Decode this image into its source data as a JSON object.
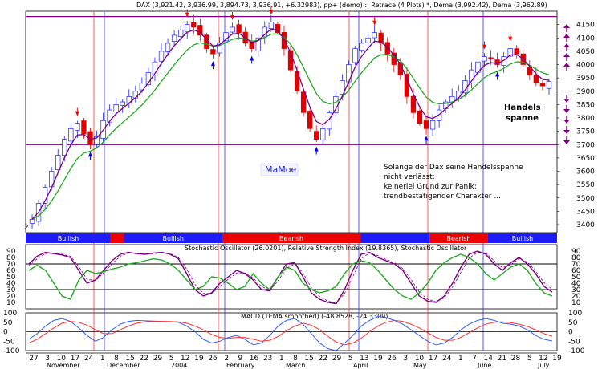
{
  "colors": {
    "up_candle": "#2020ff",
    "down_candle": "#e00000",
    "dema_fast": "#7a0080",
    "dema_slow": "#22aa22",
    "range_line": "#800080",
    "month_line_blue": "#3030ff",
    "month_line_red": "#ff3030",
    "band_bullish": "#1c1cff",
    "band_bearish": "#ee0000",
    "stoch_k": "#7a0080",
    "stoch_d": "#7a0080",
    "rsi": "#22aa22",
    "macd": "#3060ff",
    "macd_signal": "#ff3030",
    "arrow_up": "#0000ff",
    "arrow_down": "#ff0000",
    "side_arrow": "#800080"
  },
  "header": {
    "title": "DAX (3,921.42, 3,936.99, 3,894.73, 3,936.91, +6.32983), pp+ (demo) :: Retrace (4 Plots) *, Dema (3,992.42), Dema (3,962.89)"
  },
  "annotations": {
    "watermark": "MaMoe",
    "handels_line1": "Handels",
    "handels_line2": "spanne",
    "note_lines": [
      "Solange der Dax seine Handelsspanne",
      "nicht verlässt:",
      "keinerlei Grund zur Panik;",
      "trendbestätigender Charakter ..."
    ],
    "mini_label": "2"
  },
  "chart_data": [
    {
      "type": "candlestick",
      "title": "DAX (3,921.42, 3,936.99, 3,894.73, 3,936.91, +6.32983), pp+ (demo) :: Retrace (4 Plots) *, Dema (3,992.42), Dema (3,962.89)",
      "ylim": [
        3370,
        4200
      ],
      "yticks": [
        3400,
        3450,
        3500,
        3550,
        3600,
        3650,
        3700,
        3750,
        3800,
        3850,
        3900,
        3950,
        4000,
        4050,
        4100,
        4150
      ],
      "range_lines": [
        3700,
        4180
      ],
      "close": [
        3420,
        3480,
        3540,
        3600,
        3660,
        3720,
        3760,
        3780,
        3740,
        3700,
        3730,
        3790,
        3830,
        3850,
        3860,
        3880,
        3900,
        3930,
        3970,
        4010,
        4050,
        4080,
        4110,
        4130,
        4150,
        4140,
        4110,
        4060,
        4040,
        4080,
        4120,
        4140,
        4120,
        4080,
        4060,
        4100,
        4140,
        4160,
        4120,
        4060,
        3980,
        3900,
        3820,
        3760,
        3720,
        3760,
        3820,
        3880,
        3940,
        4000,
        4060,
        4080,
        4100,
        4120,
        4080,
        4040,
        4000,
        3960,
        3880,
        3820,
        3780,
        3760,
        3790,
        3830,
        3860,
        3880,
        3900,
        3940,
        3980,
        4010,
        4030,
        4020,
        4000,
        4030,
        4060,
        4040,
        4000,
        3960,
        3930,
        3920,
        3937
      ],
      "series": [
        {
          "name": "Dema (3,992.42)",
          "final": 3992.42
        },
        {
          "name": "Dema (3,962.89)",
          "final": 3962.89
        }
      ],
      "band": [
        {
          "label": "Bullish",
          "from": 0,
          "to": 0.16,
          "color": "#1c1cff"
        },
        {
          "label": "",
          "from": 0.16,
          "to": 0.185,
          "color": "#ee0000"
        },
        {
          "label": "Bullish",
          "from": 0.185,
          "to": 0.37,
          "color": "#1c1cff"
        },
        {
          "label": "Bearish",
          "from": 0.37,
          "to": 0.63,
          "color": "#ee0000"
        },
        {
          "label": "",
          "from": 0.63,
          "to": 0.76,
          "color": "#1c1cff"
        },
        {
          "label": "Bearish",
          "from": 0.76,
          "to": 0.87,
          "color": "#ee0000"
        },
        {
          "label": "Bullish",
          "from": 0.87,
          "to": 1.0,
          "color": "#1c1cff"
        }
      ]
    },
    {
      "type": "line",
      "title": "Stochastic Oscillator (26.0201), Relative Strength Index (19.8365), Stochastic Oscillator",
      "ylim": [
        0,
        100
      ],
      "yticks": [
        0,
        10,
        20,
        30,
        40,
        50,
        60,
        70,
        80,
        90
      ],
      "hlines": [
        30,
        70
      ],
      "series": [
        {
          "name": "Stochastic Oscillator (26.0201)",
          "values": [
            70,
            82,
            88,
            86,
            84,
            80,
            60,
            40,
            45,
            60,
            75,
            85,
            88,
            86,
            85,
            87,
            88,
            85,
            78,
            55,
            30,
            20,
            25,
            40,
            50,
            60,
            55,
            45,
            30,
            28,
            50,
            70,
            72,
            50,
            25,
            15,
            10,
            8,
            30,
            60,
            85,
            88,
            80,
            75,
            70,
            60,
            40,
            20,
            12,
            10,
            20,
            40,
            65,
            85,
            90,
            85,
            70,
            60,
            72,
            80,
            70,
            55,
            35,
            26
          ]
        },
        {
          "name": "Relative Strength Index (19.8365)",
          "values": [
            60,
            68,
            60,
            40,
            20,
            15,
            45,
            60,
            55,
            58,
            62,
            65,
            70,
            72,
            75,
            78,
            76,
            70,
            60,
            45,
            30,
            35,
            50,
            48,
            40,
            30,
            35,
            55,
            40,
            30,
            50,
            65,
            60,
            40,
            30,
            25,
            28,
            35,
            55,
            70,
            75,
            72,
            60,
            45,
            30,
            20,
            15,
            25,
            40,
            60,
            72,
            80,
            85,
            80,
            70,
            55,
            45,
            55,
            65,
            70,
            60,
            40,
            25,
            20
          ]
        },
        {
          "name": "Stochastic Oscillator",
          "values": [
            68,
            78,
            86,
            87,
            85,
            82,
            66,
            46,
            44,
            56,
            70,
            82,
            87,
            87,
            85,
            86,
            87,
            86,
            80,
            62,
            38,
            24,
            24,
            35,
            46,
            56,
            56,
            48,
            35,
            29,
            44,
            63,
            70,
            56,
            33,
            19,
            12,
            9,
            24,
            50,
            78,
            87,
            83,
            77,
            72,
            63,
            46,
            26,
            15,
            11,
            17,
            34,
            57,
            79,
            88,
            87,
            75,
            64,
            69,
            78,
            73,
            59,
            41,
            30
          ]
        }
      ]
    },
    {
      "type": "line",
      "title": "MACD (TEMA smoothed) (-48.8528, -24.3309)",
      "ylim": [
        -100,
        100
      ],
      "yticks": [
        -100,
        -50,
        0,
        50,
        100
      ],
      "series": [
        {
          "name": "MACD (TEMA smoothed)",
          "values": [
            -40,
            -10,
            30,
            60,
            70,
            55,
            20,
            -20,
            -50,
            -30,
            10,
            40,
            55,
            60,
            58,
            56,
            54,
            52,
            50,
            30,
            0,
            -40,
            -60,
            -50,
            -30,
            -20,
            -40,
            -70,
            -60,
            -20,
            30,
            60,
            70,
            40,
            -10,
            -60,
            -90,
            -100,
            -60,
            -20,
            30,
            60,
            80,
            75,
            60,
            40,
            10,
            -20,
            -50,
            -70,
            -60,
            -30,
            10,
            40,
            60,
            70,
            60,
            45,
            40,
            30,
            10,
            -20,
            -40,
            -49
          ]
        },
        {
          "name": "MACD signal",
          "values": [
            -60,
            -40,
            -10,
            20,
            45,
            55,
            50,
            35,
            10,
            -10,
            -10,
            10,
            30,
            45,
            52,
            55,
            55,
            54,
            52,
            45,
            30,
            10,
            -15,
            -30,
            -35,
            -30,
            -30,
            -40,
            -50,
            -45,
            -25,
            5,
            30,
            45,
            35,
            10,
            -25,
            -55,
            -70,
            -60,
            -35,
            0,
            30,
            50,
            60,
            55,
            40,
            20,
            -5,
            -30,
            -45,
            -45,
            -30,
            -5,
            20,
            40,
            50,
            52,
            48,
            40,
            28,
            10,
            -10,
            -24
          ]
        }
      ]
    }
  ],
  "x_axis": {
    "day_labels": [
      "27",
      "3",
      "10",
      "17",
      "24",
      "1",
      "8",
      "15",
      "22",
      "29",
      "5",
      "12",
      "19",
      "26",
      "2",
      "9",
      "16",
      "23",
      "1",
      "8",
      "15",
      "22",
      "29",
      "5",
      "13",
      "19",
      "26",
      "3",
      "10",
      "17",
      "24",
      "1",
      "7",
      "14",
      "21",
      "28",
      "5",
      "12",
      "19"
    ],
    "month_labels": [
      "November",
      "December",
      "2004",
      "February",
      "March",
      "April",
      "May",
      "June",
      "July"
    ]
  }
}
